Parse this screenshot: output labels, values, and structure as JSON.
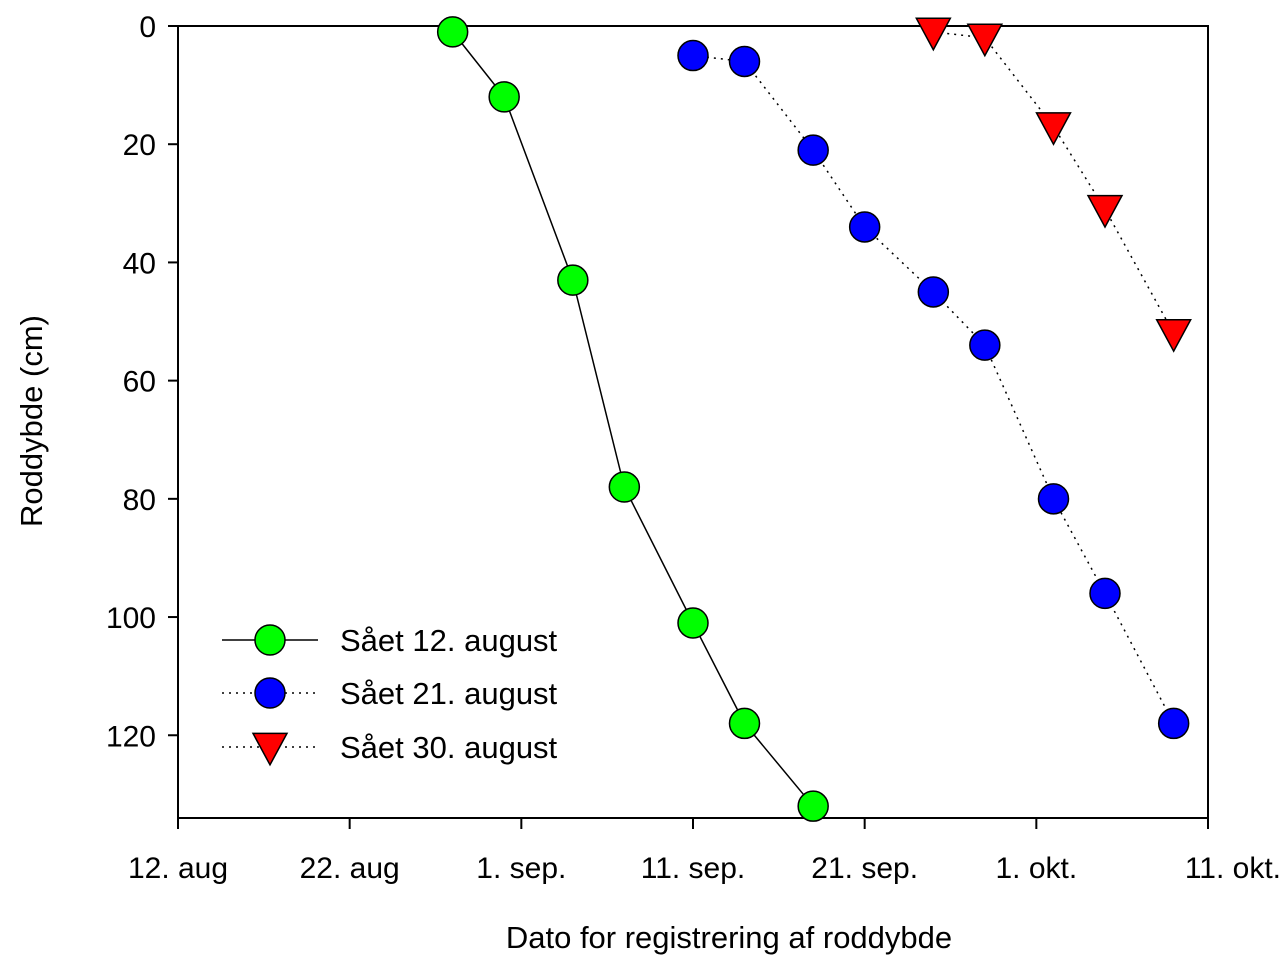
{
  "chart_data": {
    "type": "scatter",
    "title": "",
    "xlabel": "Dato for registrering af roddybde",
    "ylabel": "Roddybde (cm)",
    "x_type": "date",
    "x_range": [
      "2023-08-12",
      "2023-10-11"
    ],
    "x_ticks": [
      {
        "date": "2023-08-12",
        "label": "12. aug"
      },
      {
        "date": "2023-08-22",
        "label": "22. aug"
      },
      {
        "date": "2023-09-01",
        "label": "1. sep."
      },
      {
        "date": "2023-09-11",
        "label": "11. sep."
      },
      {
        "date": "2023-09-21",
        "label": "21. sep."
      },
      {
        "date": "2023-10-01",
        "label": "1. okt."
      },
      {
        "date": "2023-10-11",
        "label": "11. okt."
      }
    ],
    "y_inverted": true,
    "ylim": [
      0,
      134
    ],
    "y_ticks": [
      0,
      20,
      40,
      60,
      80,
      100,
      120
    ],
    "grid": false,
    "legend_position": "bottom-left",
    "series": [
      {
        "name": "Sået 12. august",
        "marker": "circle",
        "line": "solid",
        "color": "#00ff00",
        "points": [
          {
            "date": "2023-08-28",
            "depth": 1
          },
          {
            "date": "2023-08-31",
            "depth": 12
          },
          {
            "date": "2023-09-04",
            "depth": 43
          },
          {
            "date": "2023-09-07",
            "depth": 78
          },
          {
            "date": "2023-09-11",
            "depth": 101
          },
          {
            "date": "2023-09-14",
            "depth": 118
          },
          {
            "date": "2023-09-18",
            "depth": 132
          }
        ]
      },
      {
        "name": "Sået 21. august",
        "marker": "circle",
        "line": "dotted",
        "color": "#0000ff",
        "points": [
          {
            "date": "2023-09-11",
            "depth": 5
          },
          {
            "date": "2023-09-14",
            "depth": 6
          },
          {
            "date": "2023-09-18",
            "depth": 21
          },
          {
            "date": "2023-09-21",
            "depth": 34
          },
          {
            "date": "2023-09-25",
            "depth": 45
          },
          {
            "date": "2023-09-28",
            "depth": 54
          },
          {
            "date": "2023-10-02",
            "depth": 80
          },
          {
            "date": "2023-10-05",
            "depth": 96
          },
          {
            "date": "2023-10-09",
            "depth": 118
          }
        ]
      },
      {
        "name": "Sået 30. august",
        "marker": "triangle-down",
        "line": "dash-dot",
        "color": "#ff0000",
        "points": [
          {
            "date": "2023-09-25",
            "depth": 1
          },
          {
            "date": "2023-09-28",
            "depth": 2
          },
          {
            "date": "2023-10-02",
            "depth": 17
          },
          {
            "date": "2023-10-05",
            "depth": 31
          },
          {
            "date": "2023-10-09",
            "depth": 52
          }
        ]
      }
    ]
  }
}
